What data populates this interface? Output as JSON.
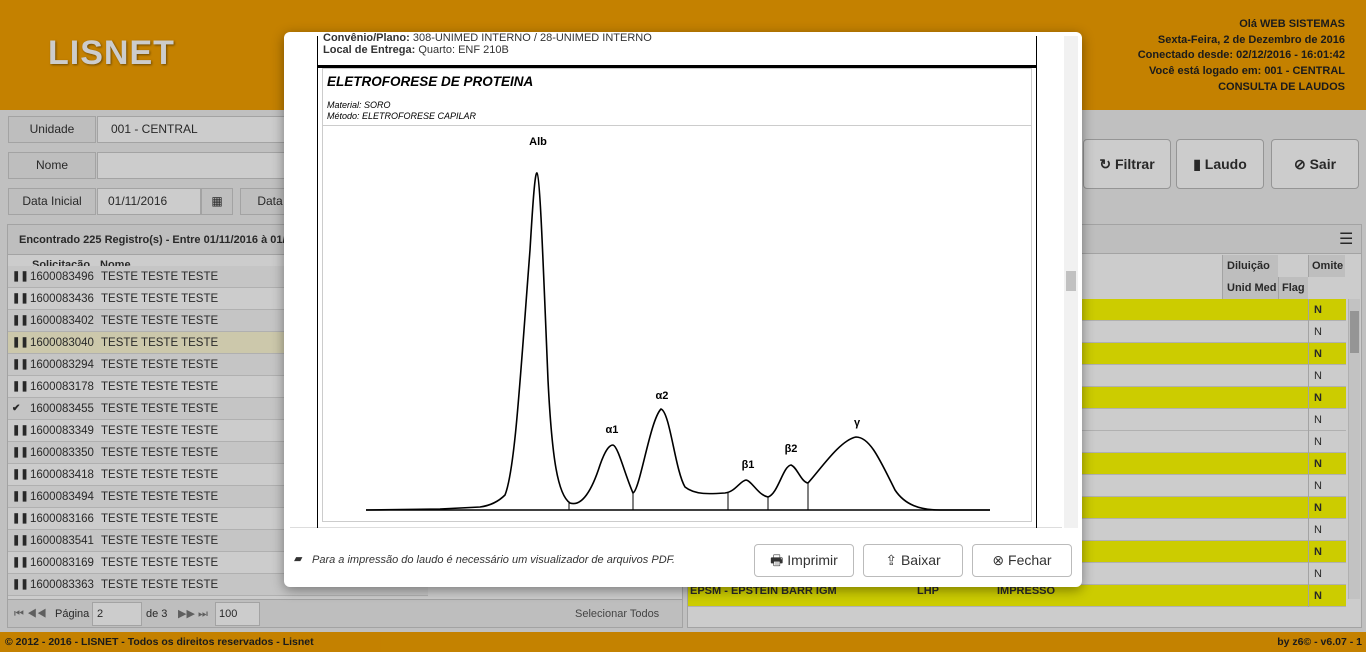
{
  "header": {
    "logo": "LISNET",
    "greeting": "Olá WEB SISTEMAS",
    "date": "Sexta-Feira, 2 de Dezembro de 2016",
    "connected": "Conectado desde: 02/12/2016 - 16:01:42",
    "logged": "Você está logado em: 001 - CENTRAL",
    "page_link": "CONSULTA DE LAUDOS"
  },
  "filters": {
    "unidade_label": "Unidade",
    "unidade_value": "001 - CENTRAL",
    "nome_label": "Nome",
    "data_inicial_label": "Data Inicial",
    "data_inicial_value": "01/11/2016",
    "data_final_label": "Data"
  },
  "buttons": {
    "filtrar": "Filtrar",
    "laudo": "Laudo",
    "sair": "Sair"
  },
  "records": {
    "summary": "Encontrado 225 Registro(s) - Entre 01/11/2016 à 01/",
    "columns": [
      "Solicitação",
      "Nome"
    ],
    "rows": [
      [
        "1600083496",
        "TESTE TESTE TESTE"
      ],
      [
        "1600083436",
        "TESTE TESTE TESTE"
      ],
      [
        "1600083402",
        "TESTE TESTE TESTE"
      ],
      [
        "1600083040",
        "TESTE TESTE TESTE"
      ],
      [
        "1600083294",
        "TESTE TESTE TESTE"
      ],
      [
        "1600083178",
        "TESTE TESTE TESTE"
      ],
      [
        "1600083455",
        "TESTE TESTE TESTE"
      ],
      [
        "1600083349",
        "TESTE TESTE TESTE"
      ],
      [
        "1600083350",
        "TESTE TESTE TESTE"
      ],
      [
        "1600083418",
        "TESTE TESTE TESTE"
      ],
      [
        "1600083494",
        "TESTE TESTE TESTE"
      ],
      [
        "1600083166",
        "TESTE TESTE TESTE"
      ],
      [
        "1600083541",
        "TESTE TESTE TESTE"
      ],
      [
        "1600083169",
        "TESTE TESTE TESTE"
      ],
      [
        "1600083363",
        "TESTE TESTE TESTE"
      ]
    ]
  },
  "pagination": {
    "page_label": "Página",
    "page": "2",
    "of": "de 3",
    "per_page": "100",
    "select_all": "Selecionar Todos"
  },
  "results": {
    "columns": [
      "Diluição",
      "Omite"
    ],
    "subcolumns": [
      "Unid Med",
      "Flag"
    ],
    "omit": [
      "N",
      "N",
      "N",
      "N",
      "N",
      "N",
      "N",
      "N",
      "N",
      "N",
      "N",
      "N",
      "N",
      "N"
    ],
    "last_row": [
      "EPSM - EPSTEIN BARR IGM",
      "LHP",
      "IMPRESSO"
    ]
  },
  "footer": {
    "copyright": "© 2012 - 2016 - LISNET - Todos os direitos reservados - Lisnet",
    "version": "by z6© - v6.07 - 1"
  },
  "modal": {
    "convenio_label": "Convênio/Plano:",
    "convenio": "308-UNIMED INTERNO / 28-UNIMED INTERNO",
    "local_label": "Local de Entrega:",
    "local": "Quarto: ENF 210B",
    "exam_title": "ELETROFORESE DE PROTEINA",
    "material_label": "Material:",
    "material": "SORO",
    "metodo_label": "Método:",
    "metodo": "ELETROFORESE CAPILAR",
    "peaks": [
      "Alb",
      "α1",
      "α2",
      "β1",
      "β2",
      "γ"
    ],
    "note": "Para a impressão do laudo é necessário um visualizador de arquivos PDF.",
    "buttons": [
      "Imprimir",
      "Baixar",
      "Fechar"
    ]
  }
}
